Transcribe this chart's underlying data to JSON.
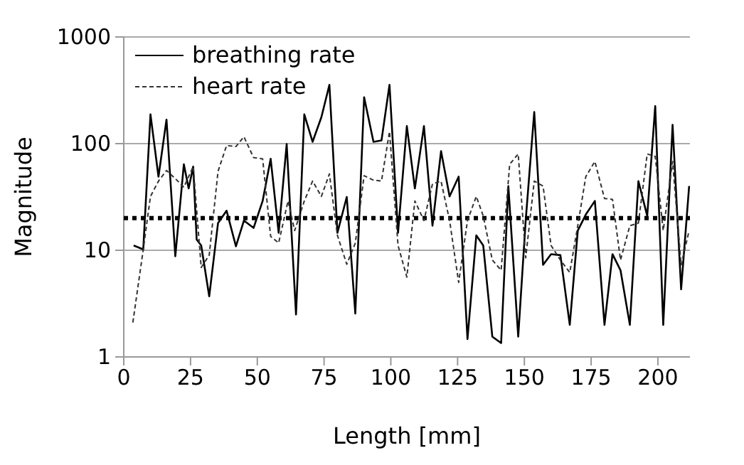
{
  "chart_data": {
    "type": "line",
    "xlabel": "Length [mm]",
    "ylabel": "Magnitude",
    "xlim": [
      0,
      212
    ],
    "xticks": [
      0,
      25,
      50,
      75,
      100,
      125,
      150,
      175,
      200
    ],
    "ylim": [
      1,
      1000
    ],
    "yticks": [
      1,
      10,
      100,
      1000
    ],
    "log": "y",
    "grid": "y",
    "legend": "top left",
    "marker": "none",
    "ref_lines": [
      {
        "axis": "y",
        "value": 20,
        "color": "#000000",
        "line_style": "dotted"
      }
    ],
    "series": [
      {
        "name": "breathing rate",
        "color": "#000000",
        "line_style": "solid",
        "x": [
          3.7,
          7.3,
          10,
          13,
          16,
          19.3,
          22.5,
          24.3,
          26,
          27.3,
          29,
          32,
          35.3,
          38.5,
          42,
          45,
          48.6,
          52,
          55,
          58,
          61,
          64.5,
          67.6,
          70.7,
          74,
          77,
          80,
          83.5,
          86.7,
          90,
          93.5,
          96.5,
          99.5,
          102.7,
          106,
          109,
          112.4,
          115.6,
          118.8,
          122,
          125.4,
          128.7,
          132,
          134.6,
          138,
          141.3,
          144,
          147.7,
          150.5,
          153.7,
          157,
          160,
          163.5,
          167,
          170,
          173,
          176.4,
          180,
          183,
          186,
          189.5,
          192.7,
          196,
          199,
          202,
          205.5,
          208.7,
          211.7
        ],
        "values": [
          11.1,
          10.2,
          188,
          49,
          168,
          8.8,
          64,
          38,
          61,
          12.6,
          11.1,
          3.7,
          18,
          23.5,
          10.9,
          19,
          16.2,
          29,
          72,
          14.6,
          99,
          2.5,
          188,
          104,
          177,
          356,
          14.6,
          31.6,
          2.55,
          272,
          104,
          107,
          356,
          14.6,
          146,
          38,
          146,
          17,
          85,
          32,
          49,
          1.47,
          13.8,
          11.1,
          1.55,
          1.35,
          40,
          1.55,
          19,
          198,
          7.3,
          9.2,
          9,
          2,
          15.3,
          21.6,
          29,
          2,
          9.2,
          6.5,
          2,
          44.5,
          21,
          225,
          2,
          150,
          4.3,
          40
        ]
      },
      {
        "name": "heart rate",
        "color": "#333333",
        "line_style": "dashed",
        "x": [
          3.4,
          7,
          10,
          13,
          16,
          19.3,
          22.5,
          26,
          29,
          32,
          35.3,
          38.5,
          42,
          45,
          48.6,
          52,
          55,
          58,
          61.5,
          64,
          67.6,
          70.7,
          74,
          77,
          80,
          83.5,
          86.7,
          90,
          93.5,
          96.5,
          99.5,
          102.7,
          106,
          109,
          112.4,
          115.6,
          118.8,
          122,
          125.4,
          128.7,
          132,
          134.6,
          138,
          141.3,
          144.5,
          147.7,
          150.5,
          153.7,
          157,
          160,
          163.5,
          167,
          170,
          173,
          176.4,
          180,
          183,
          186,
          189.5,
          192.7,
          196,
          199,
          202,
          205.5,
          208.7,
          211.7
        ],
        "values": [
          2.1,
          9,
          32,
          44.5,
          56,
          47,
          39,
          61,
          6.9,
          9,
          55,
          96,
          94,
          116,
          74,
          72,
          13.5,
          11.7,
          29,
          15.3,
          29,
          44.5,
          32,
          52,
          13.8,
          7.4,
          11.7,
          50,
          45.5,
          44.5,
          130,
          11.1,
          5.6,
          29,
          19,
          42,
          44.5,
          19,
          5,
          19,
          32,
          21,
          8.1,
          6.5,
          64,
          80,
          8.5,
          44.5,
          40,
          11.1,
          8.1,
          6.2,
          17,
          49,
          68,
          30.6,
          30,
          8.1,
          17,
          18,
          80,
          76,
          15.3,
          68,
          7.3,
          15.3
        ]
      }
    ]
  }
}
